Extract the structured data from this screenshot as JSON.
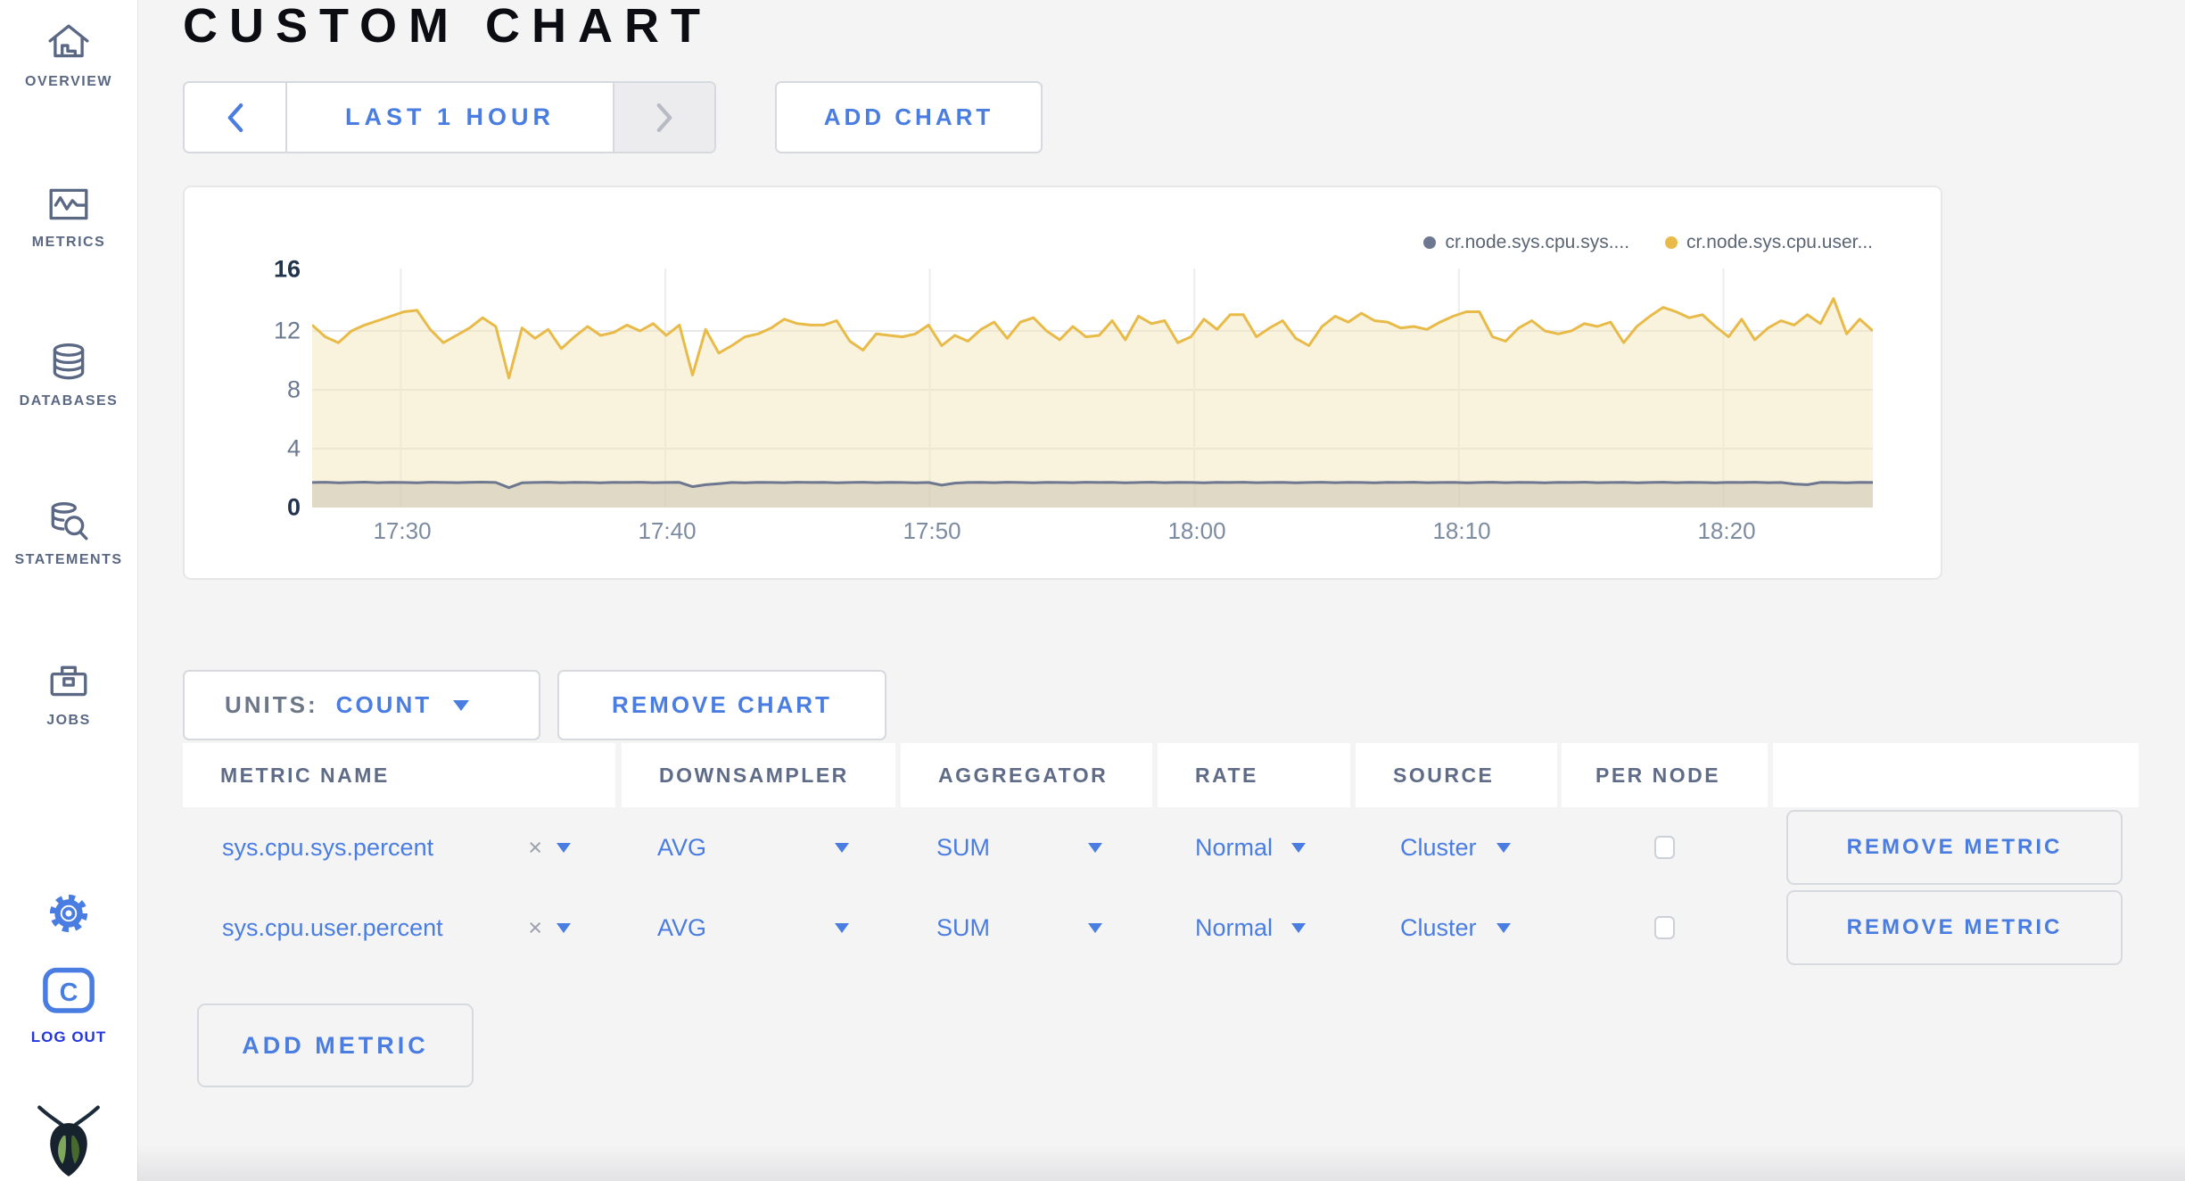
{
  "page": {
    "title": "CUSTOM CHART"
  },
  "sidebar": {
    "items": [
      {
        "label": "OVERVIEW",
        "icon": "home-icon"
      },
      {
        "label": "METRICS",
        "icon": "metrics-icon"
      },
      {
        "label": "DATABASES",
        "icon": "database-icon"
      },
      {
        "label": "STATEMENTS",
        "icon": "statements-icon"
      },
      {
        "label": "JOBS",
        "icon": "briefcase-icon"
      }
    ],
    "logout_label": "LOG OUT"
  },
  "toolbar": {
    "time_range_label": "LAST 1 HOUR",
    "add_chart_label": "ADD CHART"
  },
  "chart_controls": {
    "units_label": "UNITS:",
    "units_value": "COUNT",
    "remove_chart_label": "REMOVE CHART",
    "add_metric_label": "ADD METRIC"
  },
  "metrics_table": {
    "headers": [
      "METRIC NAME",
      "DOWNSAMPLER",
      "AGGREGATOR",
      "RATE",
      "SOURCE",
      "PER NODE",
      ""
    ],
    "rows": [
      {
        "metric_name": "sys.cpu.sys.percent",
        "clear": "×",
        "downsampler": "AVG",
        "aggregator": "SUM",
        "rate": "Normal",
        "source": "Cluster",
        "per_node_checked": false,
        "remove_label": "REMOVE METRIC"
      },
      {
        "metric_name": "sys.cpu.user.percent",
        "clear": "×",
        "downsampler": "AVG",
        "aggregator": "SUM",
        "rate": "Normal",
        "source": "Cluster",
        "per_node_checked": false,
        "remove_label": "REMOVE METRIC"
      }
    ]
  },
  "colors": {
    "accent_blue": "#4a7de2",
    "logout_blue": "#2336e0",
    "page_bg": "#f4f4f5",
    "sidebar_text": "#5a6883"
  },
  "chart_data": {
    "type": "line",
    "title": "",
    "xlabel": "",
    "ylabel": "",
    "ylim": [
      0,
      16
    ],
    "grid": true,
    "legend_position": "top-right",
    "y_ticks": [
      "16",
      "12",
      "8",
      "4",
      "0"
    ],
    "h_grid_values": [
      12,
      8,
      4
    ],
    "duration_min": 59,
    "x_ticks": [
      {
        "label": "17:30",
        "min": 3.35
      },
      {
        "label": "17:40",
        "min": 13.35
      },
      {
        "label": "17:50",
        "min": 23.35
      },
      {
        "label": "18:00",
        "min": 33.35
      },
      {
        "label": "18:10",
        "min": 43.35
      },
      {
        "label": "18:20",
        "min": 53.35
      }
    ],
    "series": [
      {
        "name": "cr.node.sys.cpu.sys....",
        "color": "#6d7890",
        "fill": "rgba(199,192,173,0.5)",
        "values": [
          1.7,
          1.72,
          1.68,
          1.7,
          1.73,
          1.69,
          1.71,
          1.7,
          1.68,
          1.72,
          1.7,
          1.69,
          1.71,
          1.73,
          1.7,
          1.35,
          1.68,
          1.7,
          1.72,
          1.69,
          1.71,
          1.7,
          1.68,
          1.71,
          1.7,
          1.72,
          1.69,
          1.7,
          1.71,
          1.42,
          1.55,
          1.62,
          1.7,
          1.68,
          1.71,
          1.7,
          1.69,
          1.72,
          1.7,
          1.71,
          1.68,
          1.7,
          1.72,
          1.69,
          1.71,
          1.7,
          1.68,
          1.7,
          1.52,
          1.66,
          1.7,
          1.71,
          1.69,
          1.72,
          1.7,
          1.68,
          1.71,
          1.7,
          1.69,
          1.72,
          1.7,
          1.71,
          1.68,
          1.7,
          1.72,
          1.69,
          1.71,
          1.7,
          1.68,
          1.71,
          1.7,
          1.72,
          1.69,
          1.7,
          1.71,
          1.68,
          1.7,
          1.72,
          1.69,
          1.71,
          1.7,
          1.68,
          1.71,
          1.7,
          1.72,
          1.69,
          1.7,
          1.71,
          1.68,
          1.7,
          1.72,
          1.69,
          1.71,
          1.7,
          1.68,
          1.71,
          1.7,
          1.72,
          1.69,
          1.7,
          1.71,
          1.68,
          1.7,
          1.72,
          1.69,
          1.71,
          1.7,
          1.68,
          1.71,
          1.7,
          1.72,
          1.69,
          1.7,
          1.6,
          1.55,
          1.71,
          1.7,
          1.68,
          1.71,
          1.7
        ]
      },
      {
        "name": "cr.node.sys.cpu.user...",
        "color": "#e8ba48",
        "fill": "rgba(243,229,188,0.5)",
        "values": [
          12.4,
          11.6,
          11.2,
          12.0,
          12.4,
          12.7,
          13.0,
          13.3,
          13.4,
          12.1,
          11.2,
          11.7,
          12.2,
          12.9,
          12.3,
          8.8,
          12.2,
          11.5,
          12.1,
          10.8,
          11.6,
          12.3,
          11.7,
          11.9,
          12.4,
          12.0,
          12.5,
          11.7,
          12.4,
          9.0,
          12.1,
          10.5,
          11.0,
          11.6,
          11.8,
          12.2,
          12.8,
          12.5,
          12.4,
          12.4,
          12.7,
          11.3,
          10.7,
          11.8,
          11.7,
          11.6,
          11.8,
          12.4,
          11.0,
          11.7,
          11.3,
          12.1,
          12.6,
          11.5,
          12.6,
          12.9,
          12.0,
          11.4,
          12.3,
          11.6,
          11.7,
          12.7,
          11.4,
          13.0,
          12.5,
          12.7,
          11.2,
          11.6,
          12.8,
          12.1,
          13.1,
          13.1,
          11.6,
          12.2,
          12.7,
          11.5,
          11.0,
          12.3,
          13.0,
          12.6,
          13.2,
          12.7,
          12.6,
          12.2,
          12.3,
          12.1,
          12.6,
          13.0,
          13.3,
          13.3,
          11.6,
          11.3,
          12.2,
          12.7,
          12.0,
          11.8,
          12.0,
          12.5,
          12.3,
          12.6,
          11.2,
          12.3,
          13.0,
          13.6,
          13.3,
          12.9,
          13.1,
          12.3,
          11.6,
          12.8,
          11.4,
          12.2,
          12.7,
          12.4,
          13.1,
          12.5,
          14.2,
          11.8,
          12.8,
          12.0
        ]
      }
    ]
  }
}
